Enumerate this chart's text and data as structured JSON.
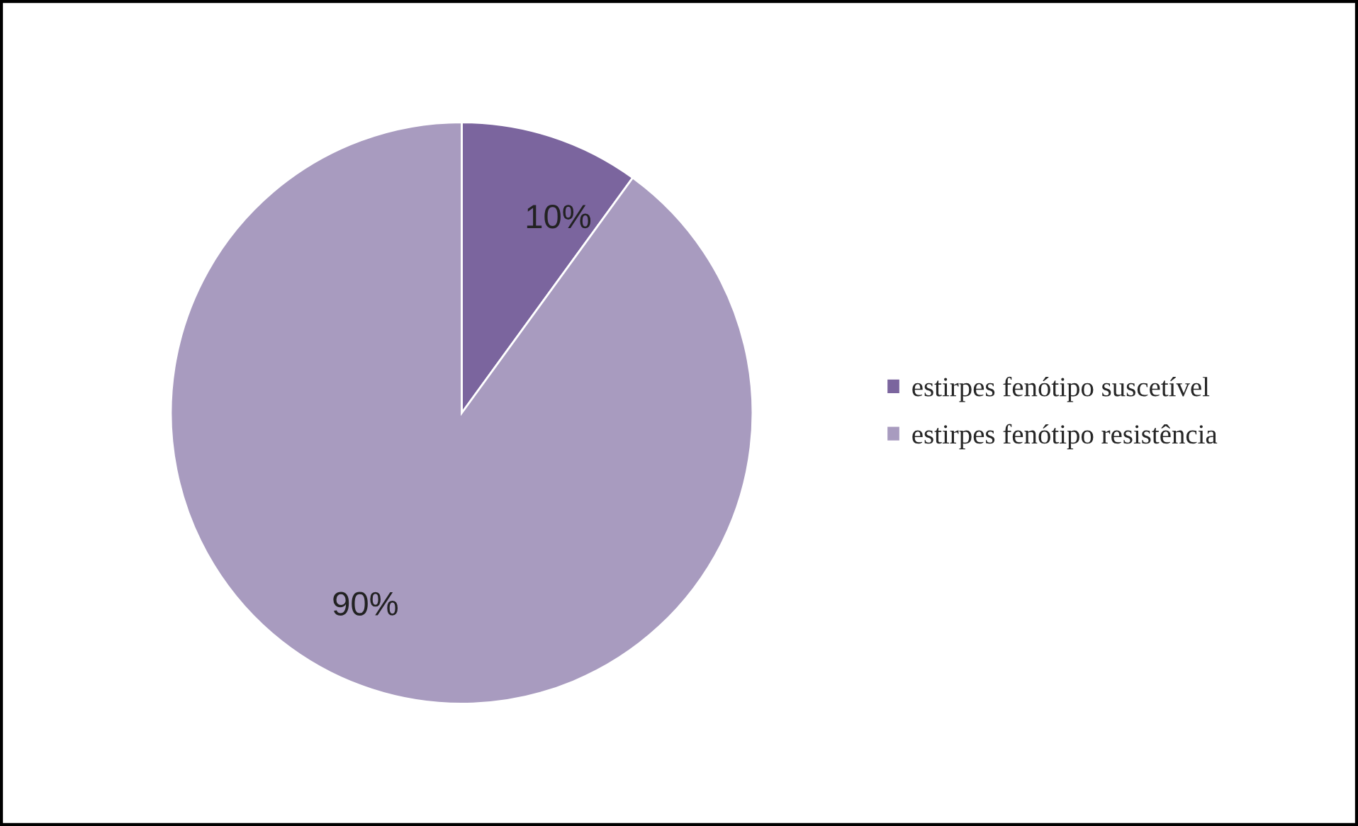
{
  "chart_data": {
    "type": "pie",
    "categories": [
      "estirpes fenótipo suscetível",
      "estirpes fenótipo resistência"
    ],
    "values": [
      10,
      90
    ],
    "colors": [
      "#7b659e",
      "#a89bbf"
    ],
    "value_labels": [
      "10%",
      "90%"
    ],
    "legend": "right"
  }
}
